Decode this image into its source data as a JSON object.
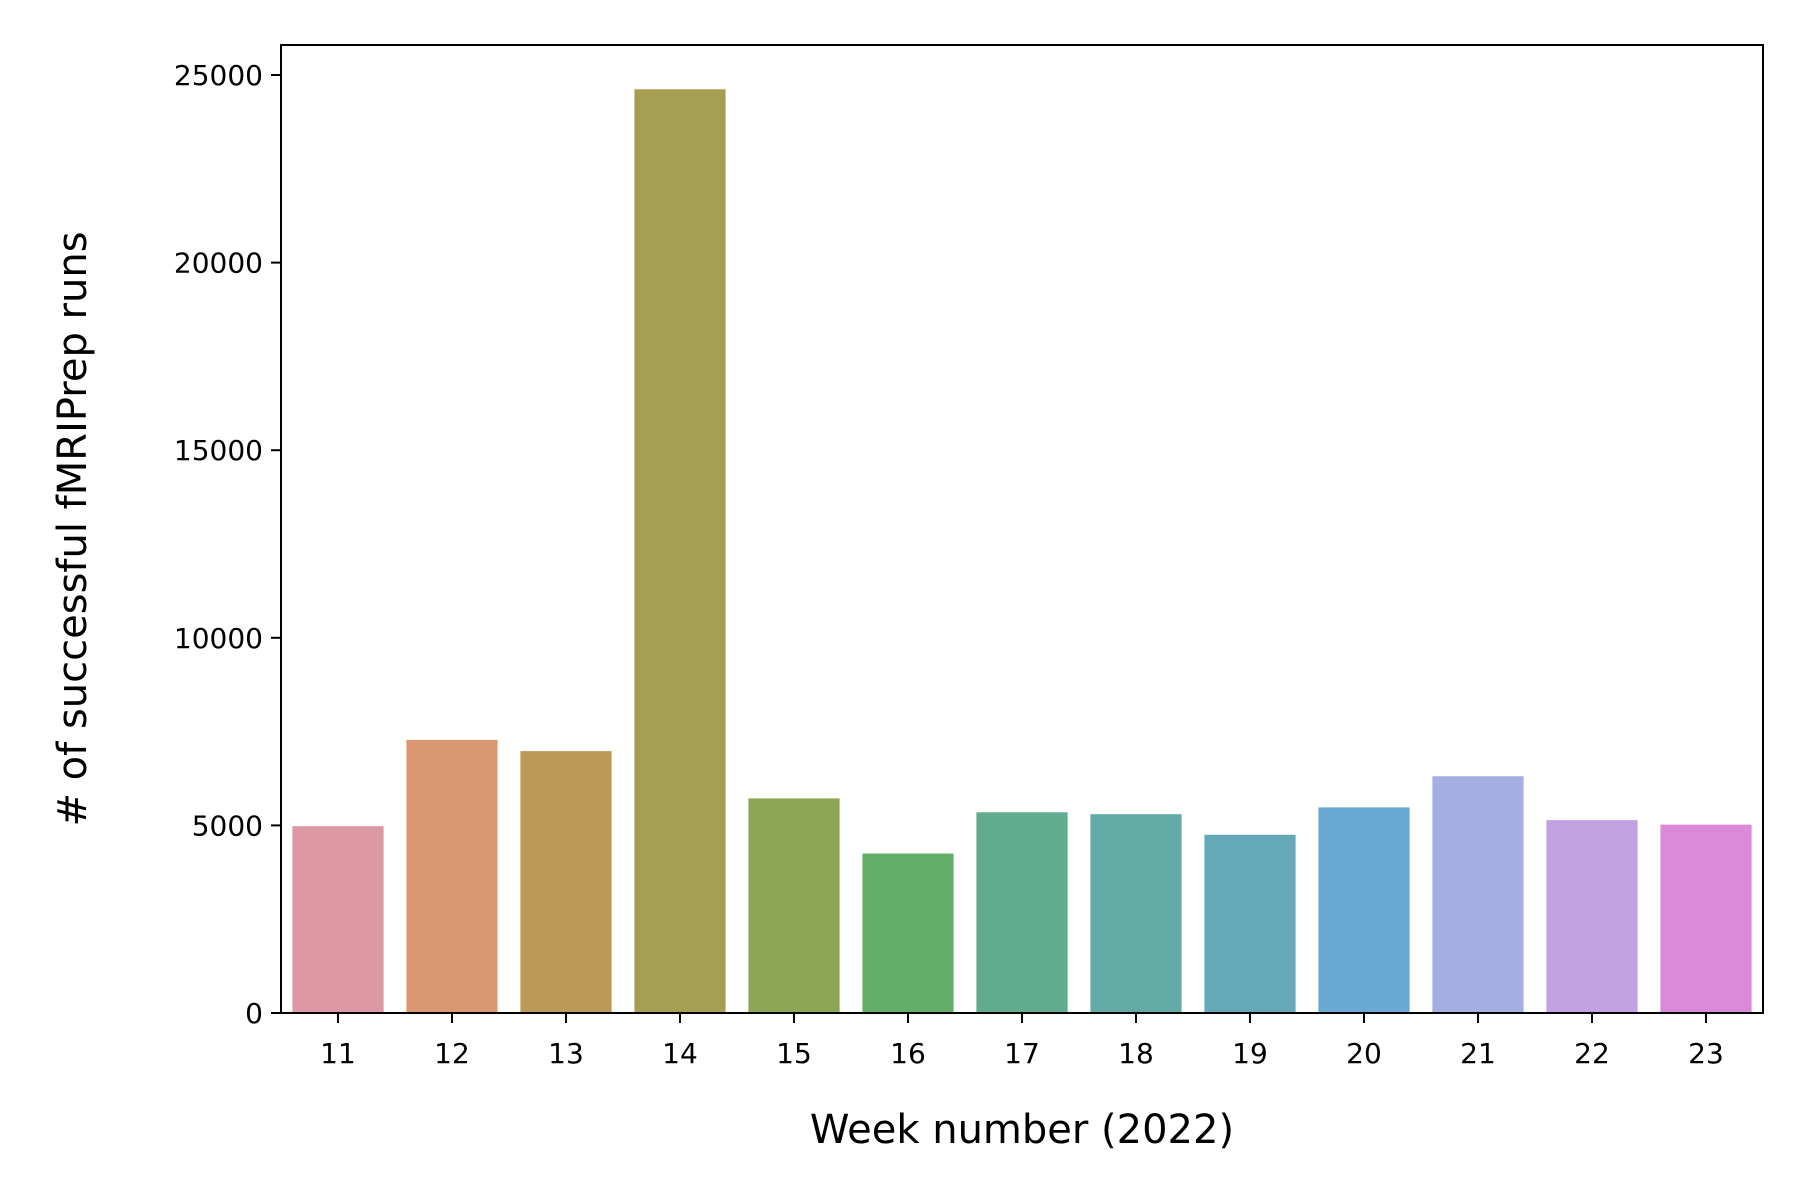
{
  "chart_data": {
    "type": "bar",
    "xlabel": "Week number (2022)",
    "ylabel": "# of successful fMRIPrep runs",
    "categories": [
      "11",
      "12",
      "13",
      "14",
      "15",
      "16",
      "17",
      "18",
      "19",
      "20",
      "21",
      "22",
      "23"
    ],
    "values": [
      4980,
      7280,
      6980,
      24620,
      5720,
      4250,
      5350,
      5300,
      4750,
      5480,
      6310,
      5140,
      5020
    ],
    "colors": [
      "#dd98a5",
      "#d99871",
      "#bd9958",
      "#a69f52",
      "#8da656",
      "#63ae66",
      "#61ac8e",
      "#62aba7",
      "#65a9b8",
      "#69a9d4",
      "#a3aee3",
      "#c2a0e1",
      "#da8ad8"
    ],
    "ylim": [
      0,
      25800
    ],
    "yticks": [
      0,
      5000,
      10000,
      15000,
      20000,
      25000
    ],
    "grid": false,
    "legend": "none"
  }
}
